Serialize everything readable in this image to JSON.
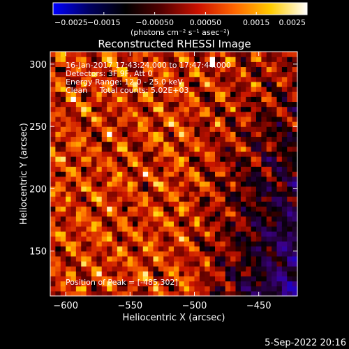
{
  "chart_data": {
    "type": "heatmap",
    "title": "Reconstructed RHESSI Image",
    "xlabel": "Heliocentric X (arcsec)",
    "ylabel": "Heliocentric Y (arcsec)",
    "xlim": [
      -612,
      -420
    ],
    "ylim": [
      114,
      310
    ],
    "x_ticks": [
      -600,
      -550,
      -500,
      -450
    ],
    "x_tick_labels": [
      "−600",
      "−550",
      "−500",
      "−450"
    ],
    "y_ticks": [
      150,
      200,
      250,
      300
    ],
    "y_tick_labels": [
      "150",
      "200",
      "250",
      "300"
    ],
    "colorbar": {
      "min": -0.0025,
      "max": 0.0025,
      "ticks": [
        -0.0025,
        -0.0015,
        -0.0005,
        0.0005,
        0.0015,
        0.0025
      ],
      "tick_labels": [
        "−0.0025",
        "−0.0015",
        "−0.00050",
        "0.00050",
        "0.0015",
        "0.0025"
      ],
      "unit_label": "(photons cm⁻² s⁻¹ asec⁻²)",
      "colors": [
        "#0000ff",
        "#000060",
        "#000000",
        "#550000",
        "#cc1100",
        "#ff6600",
        "#ffcc00",
        "#ffffff"
      ]
    },
    "annotations": [
      "16-Jan-2017 17:43:24.000 to 17:47:44.000",
      "Detectors: 3F 9F, Att 0",
      "Energy Range: 12.0 - 25.0 keV",
      "Clean     Total counts: 5.02E+03"
    ],
    "peak_label": "Position of Peak = [-485,302]",
    "peak": [
      -485,
      302
    ],
    "grid": false,
    "pixel_size_arcsec": 4
  },
  "footer": {
    "date": "5-Sep-2022 20:16"
  }
}
